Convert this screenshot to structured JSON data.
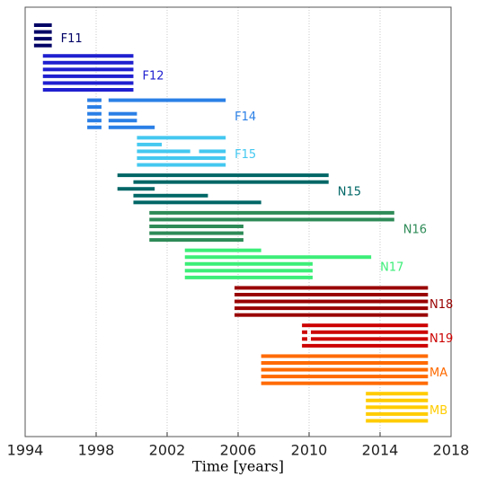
{
  "chart_data": {
    "type": "timeline",
    "xlabel": "Time [years]",
    "xlim": [
      1994,
      2018
    ],
    "xticks": [
      1994,
      1998,
      2002,
      2006,
      2010,
      2014,
      2018
    ],
    "grid": true,
    "series": [
      {
        "name": "F11",
        "color": "#000066",
        "rows": [
          [
            [
              1994.5,
              1995.5
            ]
          ],
          [
            [
              1994.5,
              1995.5
            ]
          ],
          [
            [
              1994.5,
              1995.5
            ]
          ],
          [
            [
              1994.5,
              1995.5
            ]
          ]
        ]
      },
      {
        "name": "F12",
        "color": "#1f1fd0",
        "rows": [
          [
            [
              1995,
              2000.1
            ]
          ],
          [
            [
              1995,
              2000.1
            ]
          ],
          [
            [
              1995,
              2000.1
            ]
          ],
          [
            [
              1995,
              2000.1
            ]
          ],
          [
            [
              1995,
              2000.1
            ]
          ],
          [
            [
              1995,
              2000.1
            ]
          ]
        ]
      },
      {
        "name": "F14",
        "color": "#2a7fe6",
        "rows": [
          [
            [
              1997.5,
              1998.3
            ],
            [
              1998.7,
              2005.3
            ]
          ],
          [
            [
              1997.5,
              1998.3
            ]
          ],
          [
            [
              1997.5,
              1998.3
            ],
            [
              1998.7,
              2000.3
            ]
          ],
          [
            [
              1997.5,
              1998.3
            ],
            [
              1998.7,
              2000.3
            ]
          ],
          [
            [
              1997.5,
              1998.3
            ],
            [
              1998.7,
              2001.3
            ]
          ]
        ]
      },
      {
        "name": "F15",
        "color": "#44c8f0",
        "rows": [
          [
            [
              2000.3,
              2005.3
            ]
          ],
          [
            [
              2000.3,
              2001.7
            ]
          ],
          [
            [
              2000.3,
              2003.3
            ],
            [
              2003.8,
              2005.3
            ]
          ],
          [
            [
              2000.3,
              2005.3
            ]
          ],
          [
            [
              2000.3,
              2005.3
            ]
          ]
        ]
      },
      {
        "name": "N15",
        "color": "#006666",
        "rows": [
          [
            [
              1999.2,
              2011.1
            ]
          ],
          [
            [
              2000.1,
              2011.1
            ]
          ],
          [
            [
              1999.2,
              2001.3
            ]
          ],
          [
            [
              2000.1,
              2004.3
            ]
          ],
          [
            [
              2000.1,
              2007.3
            ]
          ]
        ]
      },
      {
        "name": "N16",
        "color": "#2e8b57",
        "rows": [
          [
            [
              2001,
              2014.8
            ]
          ],
          [
            [
              2001,
              2014.8
            ]
          ],
          [
            [
              2001,
              2006.3
            ]
          ],
          [
            [
              2001,
              2006.3
            ]
          ],
          [
            [
              2001,
              2006.3
            ]
          ]
        ]
      },
      {
        "name": "N17",
        "color": "#3cee78",
        "rows": [
          [
            [
              2003,
              2007.3
            ]
          ],
          [
            [
              2003,
              2013.5
            ]
          ],
          [
            [
              2003,
              2010.2
            ]
          ],
          [
            [
              2003,
              2010.2
            ]
          ],
          [
            [
              2003,
              2010.2
            ]
          ]
        ]
      },
      {
        "name": "N18",
        "color": "#990000",
        "rows": [
          [
            [
              2005.8,
              2016.7
            ]
          ],
          [
            [
              2005.8,
              2016.7
            ]
          ],
          [
            [
              2005.8,
              2016.7
            ]
          ],
          [
            [
              2005.8,
              2016.7
            ]
          ],
          [
            [
              2005.8,
              2016.7
            ]
          ]
        ]
      },
      {
        "name": "N19",
        "color": "#cc0000",
        "rows": [
          [
            [
              2009.6,
              2016.7
            ]
          ],
          [
            [
              2009.6,
              2009.9
            ],
            [
              2010.1,
              2016.7
            ]
          ],
          [
            [
              2009.6,
              2009.9
            ],
            [
              2010.1,
              2016.7
            ]
          ],
          [
            [
              2009.6,
              2016.7
            ]
          ]
        ]
      },
      {
        "name": "MA",
        "color": "#ff6a00",
        "rows": [
          [
            [
              2007.3,
              2016.7
            ]
          ],
          [
            [
              2007.3,
              2016.7
            ]
          ],
          [
            [
              2007.3,
              2016.7
            ]
          ],
          [
            [
              2007.3,
              2016.7
            ]
          ],
          [
            [
              2007.3,
              2016.7
            ]
          ]
        ]
      },
      {
        "name": "MB",
        "color": "#ffcc00",
        "rows": [
          [
            [
              2013.2,
              2016.7
            ]
          ],
          [
            [
              2013.2,
              2016.7
            ]
          ],
          [
            [
              2013.2,
              2016.7
            ]
          ],
          [
            [
              2013.2,
              2016.7
            ]
          ],
          [
            [
              2013.2,
              2016.7
            ]
          ]
        ]
      }
    ]
  }
}
